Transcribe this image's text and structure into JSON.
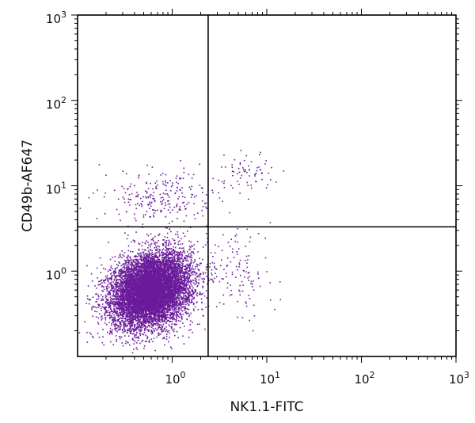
{
  "chart_data": {
    "type": "scatter",
    "title": "",
    "xlabel": "NK1.1-FITC",
    "ylabel": "CD49b-AF647",
    "xscale": "log",
    "yscale": "log",
    "xlim": [
      0.1,
      1000
    ],
    "ylim": [
      0.1,
      1000
    ],
    "x_ticks": [
      {
        "value": 1,
        "base": "10",
        "exp": "0"
      },
      {
        "value": 10,
        "base": "10",
        "exp": "1"
      },
      {
        "value": 100,
        "base": "10",
        "exp": "2"
      },
      {
        "value": 1000,
        "base": "10",
        "exp": "3"
      }
    ],
    "y_ticks": [
      {
        "value": 1,
        "base": "10",
        "exp": "0"
      },
      {
        "value": 10,
        "base": "10",
        "exp": "1"
      },
      {
        "value": 100,
        "base": "10",
        "exp": "2"
      },
      {
        "value": 1000,
        "base": "10",
        "exp": "3"
      }
    ],
    "quadrant_gates": {
      "x": 2.4,
      "y": 3.3
    },
    "grid": false,
    "legend": "none",
    "point_color": "#6a1b9a",
    "populations": [
      {
        "center": [
          0.6,
          0.6
        ],
        "count": 9000,
        "approx_location": "lower-left (NK1.1- CD49b-)"
      },
      {
        "center": [
          6,
          14
        ],
        "count": 70,
        "approx_location": "upper-right (NK1.1+ CD49b+)"
      },
      {
        "center": [
          0.8,
          7
        ],
        "count": 250,
        "approx_location": "upper-left (NK1.1- CD49b+)"
      },
      {
        "center": [
          5,
          0.9
        ],
        "count": 120,
        "approx_location": "lower-right (NK1.1+ CD49b-)"
      }
    ]
  }
}
